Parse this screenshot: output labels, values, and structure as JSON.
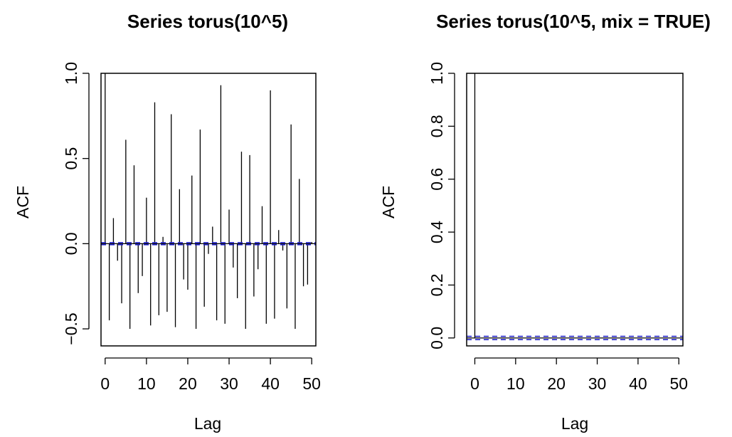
{
  "chart_data": [
    {
      "type": "bar",
      "title": "Series  torus(10^5)",
      "xlabel": "Lag",
      "ylabel": "ACF",
      "xlim": [
        -1,
        51
      ],
      "ylim": [
        -0.6,
        1.0
      ],
      "x_ticks": [
        0,
        10,
        20,
        30,
        40,
        50
      ],
      "y_ticks": [
        -0.5,
        0.0,
        0.5,
        1.0
      ],
      "y_tick_labels": [
        "−0.5",
        "0.0",
        "0.5",
        "1.0"
      ],
      "ci": 0.0062,
      "lags": [
        0,
        1,
        2,
        3,
        4,
        5,
        6,
        7,
        8,
        9,
        10,
        11,
        12,
        13,
        14,
        15,
        16,
        17,
        18,
        19,
        20,
        21,
        22,
        23,
        24,
        25,
        26,
        27,
        28,
        29,
        30,
        31,
        32,
        33,
        34,
        35,
        36,
        37,
        38,
        39,
        40,
        41,
        42,
        43,
        44,
        45,
        46,
        47,
        48,
        49,
        50
      ],
      "values": [
        1.0,
        -0.45,
        0.15,
        -0.1,
        -0.35,
        0.61,
        -0.5,
        0.46,
        -0.29,
        -0.19,
        0.27,
        -0.48,
        0.83,
        -0.42,
        0.04,
        -0.4,
        0.76,
        -0.49,
        0.32,
        -0.21,
        -0.27,
        0.4,
        -0.5,
        0.67,
        -0.37,
        -0.06,
        0.1,
        -0.45,
        0.93,
        -0.47,
        0.2,
        -0.14,
        -0.32,
        0.54,
        -0.5,
        0.52,
        -0.31,
        -0.15,
        0.22,
        -0.47,
        0.9,
        -0.44,
        0.08,
        -0.04,
        -0.38,
        0.7,
        -0.5,
        0.38,
        -0.25,
        -0.24,
        0.01
      ]
    },
    {
      "type": "bar",
      "title": "Series  torus(10^5, mix = TRUE)",
      "xlabel": "Lag",
      "ylabel": "ACF",
      "xlim": [
        -2,
        51
      ],
      "ylim": [
        -0.03,
        1.0
      ],
      "x_ticks": [
        0,
        10,
        20,
        30,
        40,
        50
      ],
      "y_ticks": [
        0.0,
        0.2,
        0.4,
        0.6,
        0.8,
        1.0
      ],
      "y_tick_labels": [
        "0.0",
        "0.2",
        "0.4",
        "0.6",
        "0.8",
        "1.0"
      ],
      "ci": 0.0062,
      "lags": [
        0,
        1,
        2,
        3,
        4,
        5,
        6,
        7,
        8,
        9,
        10,
        11,
        12,
        13,
        14,
        15,
        16,
        17,
        18,
        19,
        20,
        21,
        22,
        23,
        24,
        25,
        26,
        27,
        28,
        29,
        30,
        31,
        32,
        33,
        34,
        35,
        36,
        37,
        38,
        39,
        40,
        41,
        42,
        43,
        44,
        45,
        46,
        47,
        48,
        49,
        50
      ],
      "values": [
        1.0,
        0,
        0,
        0,
        0,
        0,
        0,
        0,
        0,
        0,
        0,
        0,
        0,
        0,
        0,
        0,
        0,
        0,
        0,
        0,
        0,
        0,
        0,
        0,
        0,
        0,
        0,
        0,
        0,
        0,
        0,
        0,
        0,
        0,
        0,
        0,
        0,
        0,
        0,
        0,
        0,
        0,
        0,
        0,
        0,
        0,
        0,
        0,
        0,
        0,
        0
      ]
    }
  ],
  "colors": {
    "spike": "#000000",
    "ci_line": "#2222cc",
    "zero_line": "#000000"
  }
}
